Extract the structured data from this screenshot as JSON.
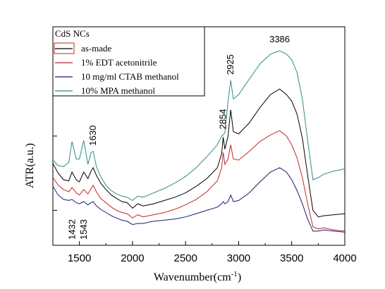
{
  "chart_data": {
    "type": "line",
    "xlabel": "Wavenumber(cm",
    "xlabel_sup": "-1",
    "xlabel_close": ")",
    "ylabel": "ATR(a.u.)",
    "xlim": [
      1250,
      4000
    ],
    "ylim": [
      0,
      10
    ],
    "xticks": [
      1500,
      2000,
      2500,
      3000,
      3500,
      4000
    ],
    "grid": false,
    "legend": {
      "placement": "top-left",
      "title": "CdS NCs"
    },
    "series": [
      {
        "name": "as-made",
        "color": "#000000",
        "x": [
          1250,
          1300,
          1350,
          1400,
          1430,
          1470,
          1500,
          1540,
          1580,
          1610,
          1630,
          1660,
          1700,
          1750,
          1800,
          1850,
          1900,
          1950,
          2000,
          2050,
          2100,
          2150,
          2200,
          2300,
          2400,
          2500,
          2600,
          2700,
          2800,
          2840,
          2854,
          2870,
          2900,
          2925,
          2950,
          3000,
          3100,
          3200,
          3300,
          3386,
          3450,
          3500,
          3550,
          3600,
          3650,
          3700,
          3750,
          3800,
          3900,
          4000
        ],
        "y": [
          3.75,
          3.3,
          3.0,
          2.95,
          3.35,
          3.0,
          2.9,
          3.35,
          3.05,
          3.4,
          3.55,
          3.2,
          2.85,
          2.55,
          2.3,
          2.15,
          2.0,
          1.95,
          1.7,
          1.9,
          1.8,
          1.85,
          1.9,
          2.05,
          2.2,
          2.4,
          2.7,
          3.05,
          3.55,
          4.2,
          4.95,
          4.4,
          5.0,
          6.2,
          5.2,
          5.1,
          5.6,
          6.3,
          6.9,
          7.15,
          6.9,
          6.6,
          6.0,
          4.9,
          3.2,
          1.6,
          1.3,
          1.35,
          1.4,
          1.45
        ]
      },
      {
        "name": "1% EDT acetonitrile",
        "color": "#c0282a",
        "x": [
          1250,
          1300,
          1350,
          1400,
          1430,
          1470,
          1500,
          1540,
          1580,
          1610,
          1630,
          1660,
          1700,
          1750,
          1800,
          1850,
          1900,
          1950,
          2000,
          2050,
          2100,
          2150,
          2200,
          2300,
          2400,
          2500,
          2600,
          2700,
          2800,
          2840,
          2854,
          2870,
          2900,
          2925,
          2950,
          3000,
          3100,
          3200,
          3300,
          3386,
          3450,
          3500,
          3550,
          3600,
          3650,
          3700,
          3750,
          3800,
          3900,
          4000
        ],
        "y": [
          3.1,
          2.75,
          2.55,
          2.45,
          2.65,
          2.4,
          2.3,
          2.55,
          2.35,
          2.6,
          2.75,
          2.45,
          2.15,
          1.95,
          1.75,
          1.6,
          1.5,
          1.45,
          1.25,
          1.4,
          1.3,
          1.35,
          1.4,
          1.5,
          1.65,
          1.85,
          2.1,
          2.45,
          2.95,
          3.55,
          4.25,
          3.7,
          3.95,
          4.6,
          3.95,
          3.9,
          4.3,
          4.75,
          5.05,
          5.25,
          5.0,
          4.6,
          4.0,
          3.1,
          1.9,
          0.85,
          0.75,
          0.8,
          0.7,
          0.65
        ]
      },
      {
        "name": "10 mg/ml CTAB methanol",
        "color": "#1a1a70",
        "x": [
          1250,
          1300,
          1350,
          1400,
          1430,
          1470,
          1500,
          1540,
          1580,
          1610,
          1630,
          1660,
          1700,
          1750,
          1800,
          1850,
          1900,
          1950,
          2000,
          2050,
          2100,
          2150,
          2200,
          2300,
          2400,
          2500,
          2600,
          2700,
          2800,
          2840,
          2854,
          2870,
          2900,
          2925,
          2950,
          3000,
          3100,
          3200,
          3300,
          3386,
          3450,
          3500,
          3550,
          3600,
          3650,
          3700,
          3750,
          3800,
          3900,
          4000
        ],
        "y": [
          2.7,
          2.3,
          2.1,
          2.05,
          2.1,
          1.95,
          1.9,
          2.0,
          1.85,
          1.95,
          2.0,
          1.8,
          1.65,
          1.5,
          1.35,
          1.25,
          1.15,
          1.1,
          0.95,
          1.0,
          1.0,
          1.05,
          1.1,
          1.15,
          1.2,
          1.3,
          1.45,
          1.6,
          1.75,
          1.9,
          2.0,
          1.9,
          2.0,
          2.3,
          2.0,
          2.05,
          2.4,
          2.9,
          3.35,
          3.55,
          3.35,
          3.0,
          2.5,
          1.9,
          1.2,
          0.65,
          0.65,
          0.7,
          0.65,
          0.6
        ]
      },
      {
        "name": "10% MPA methanol",
        "color": "#2e8b8b",
        "x": [
          1250,
          1300,
          1350,
          1400,
          1430,
          1470,
          1500,
          1540,
          1580,
          1610,
          1630,
          1660,
          1700,
          1750,
          1800,
          1850,
          1900,
          1950,
          2000,
          2050,
          2100,
          2150,
          2200,
          2300,
          2400,
          2500,
          2600,
          2700,
          2800,
          2840,
          2854,
          2870,
          2900,
          2925,
          2950,
          3000,
          3100,
          3200,
          3300,
          3386,
          3450,
          3500,
          3550,
          3600,
          3650,
          3700,
          3750,
          3800,
          3900,
          4000
        ],
        "y": [
          3.9,
          3.65,
          3.6,
          3.8,
          4.75,
          3.95,
          3.95,
          4.8,
          3.7,
          4.25,
          4.3,
          3.6,
          3.15,
          2.75,
          2.5,
          2.35,
          2.25,
          2.2,
          2.05,
          2.25,
          2.2,
          2.3,
          2.4,
          2.6,
          2.85,
          3.15,
          3.55,
          4.05,
          4.6,
          5.0,
          5.05,
          5.15,
          6.6,
          7.55,
          6.7,
          6.9,
          7.6,
          8.3,
          8.75,
          8.9,
          8.75,
          8.5,
          7.9,
          6.7,
          4.8,
          3.0,
          3.1,
          3.25,
          3.4,
          3.5
        ]
      }
    ],
    "annotations": [
      {
        "text": "1432",
        "x": 1432
      },
      {
        "text": "1543",
        "x": 1543
      },
      {
        "text": "1630",
        "x": 1630
      },
      {
        "text": "2854",
        "x": 2854
      },
      {
        "text": "2925",
        "x": 2925
      },
      {
        "text": "3386",
        "x": 3386
      }
    ]
  }
}
